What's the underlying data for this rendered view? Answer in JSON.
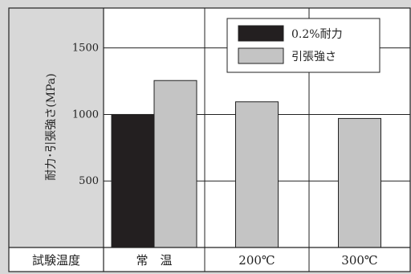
{
  "colors": {
    "background": "#d8d8d8",
    "plot_background": "#ffffff",
    "axis": "#222222",
    "grid": "#222222",
    "series_0": "#231f20",
    "series_1": "#c4c4c4"
  },
  "chart_data": {
    "type": "bar",
    "ylabel": "耐力･引張強さ(MPa)",
    "category_axis_label": "試験温度",
    "categories": [
      "常　温",
      "200℃",
      "300℃"
    ],
    "series": [
      {
        "name": "0.2%耐力",
        "values": [
          1000,
          null,
          null
        ]
      },
      {
        "name": "引張強さ",
        "values": [
          1255,
          1095,
          970
        ]
      }
    ],
    "ylim": [
      0,
      1800
    ],
    "yticks": [
      500,
      1000,
      1500
    ],
    "grid": true,
    "legend_position": "top-right"
  }
}
